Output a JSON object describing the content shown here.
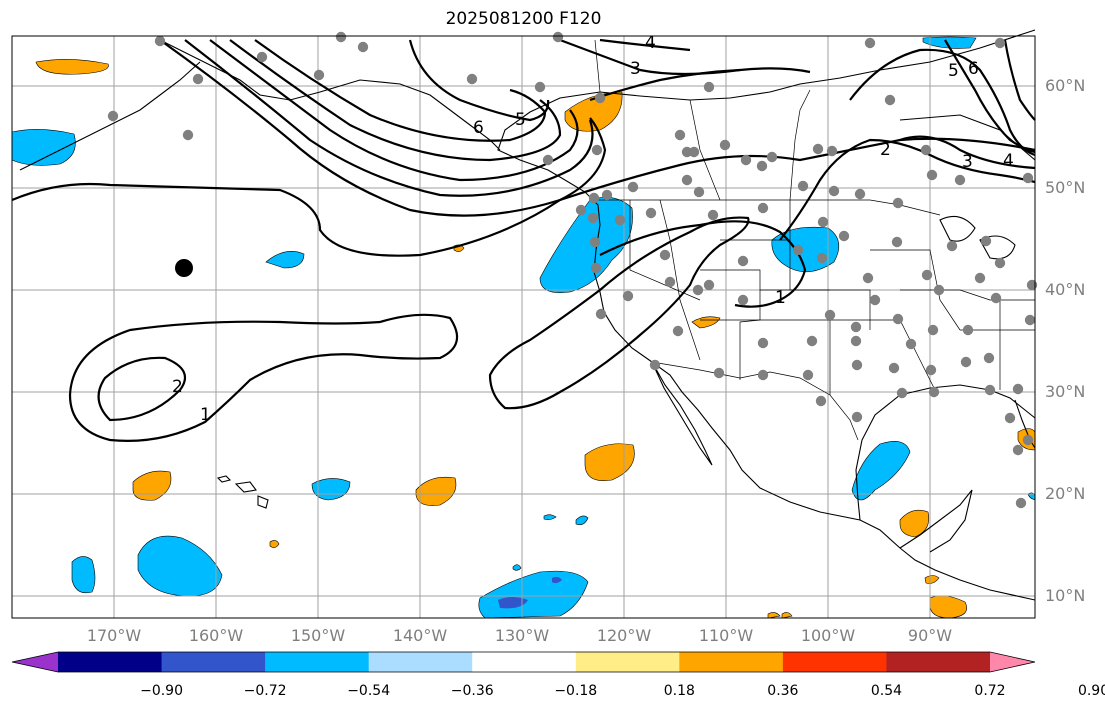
{
  "title": "2025081200 F120",
  "lat_labels": [
    {
      "lat": 60,
      "text": "60°N"
    },
    {
      "lat": 50,
      "text": "50°N"
    },
    {
      "lat": 40,
      "text": "40°N"
    },
    {
      "lat": 30,
      "text": "30°N"
    },
    {
      "lat": 20,
      "text": "20°N"
    },
    {
      "lat": 10,
      "text": "10°N"
    }
  ],
  "lon_labels": [
    {
      "lon": -170,
      "text": "170°W"
    },
    {
      "lon": -160,
      "text": "160°W"
    },
    {
      "lon": -150,
      "text": "150°W"
    },
    {
      "lon": -140,
      "text": "140°W"
    },
    {
      "lon": -130,
      "text": "130°W"
    },
    {
      "lon": -120,
      "text": "120°W"
    },
    {
      "lon": -110,
      "text": "110°W"
    },
    {
      "lon": -100,
      "text": "100°W"
    },
    {
      "lon": -90,
      "text": "90°W"
    }
  ],
  "colorbar": {
    "colors": [
      "#9933cc",
      "#000088",
      "#3355cc",
      "#00bbff",
      "#aaddff",
      "#ffffff",
      "#ffee88",
      "#ffa500",
      "#ff3300",
      "#b22222",
      "#ff88aa"
    ],
    "tick_labels": [
      "−0.90",
      "−0.72",
      "−0.54",
      "−0.36",
      "−0.18",
      "0.18",
      "0.36",
      "0.54",
      "0.72",
      "0.90"
    ]
  },
  "contour_labels": [
    "1",
    "1",
    "2",
    "3",
    "3",
    "4",
    "4",
    "5",
    "5",
    "6",
    "6",
    "2"
  ],
  "marker_color": "#808080",
  "highlight_marker_color": "#000000"
}
